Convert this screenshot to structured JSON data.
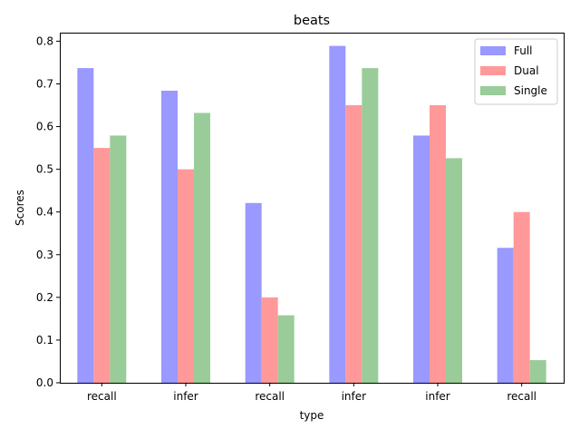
{
  "chart_data": {
    "type": "bar",
    "title": "beats",
    "xlabel": "type",
    "ylabel": "Scores",
    "categories": [
      "recall",
      "infer",
      "recall",
      "infer",
      "infer",
      "recall"
    ],
    "ylim": [
      0,
      0.82
    ],
    "yticks": [
      0.0,
      0.1,
      0.2,
      0.3,
      0.4,
      0.5,
      0.6,
      0.7,
      0.8
    ],
    "ytick_labels": [
      "0.0",
      "0.1",
      "0.2",
      "0.3",
      "0.4",
      "0.5",
      "0.6",
      "0.7",
      "0.8"
    ],
    "grid": false,
    "legend_position": "top-right",
    "series": [
      {
        "name": "Full",
        "color": "#9999ff",
        "values": [
          0.737,
          0.684,
          0.421,
          0.789,
          0.579,
          0.316
        ]
      },
      {
        "name": "Dual",
        "color": "#ff9999",
        "values": [
          0.55,
          0.5,
          0.2,
          0.65,
          0.65,
          0.4
        ]
      },
      {
        "name": "Single",
        "color": "#99cc99",
        "values": [
          0.579,
          0.632,
          0.158,
          0.737,
          0.526,
          0.053
        ]
      }
    ]
  }
}
